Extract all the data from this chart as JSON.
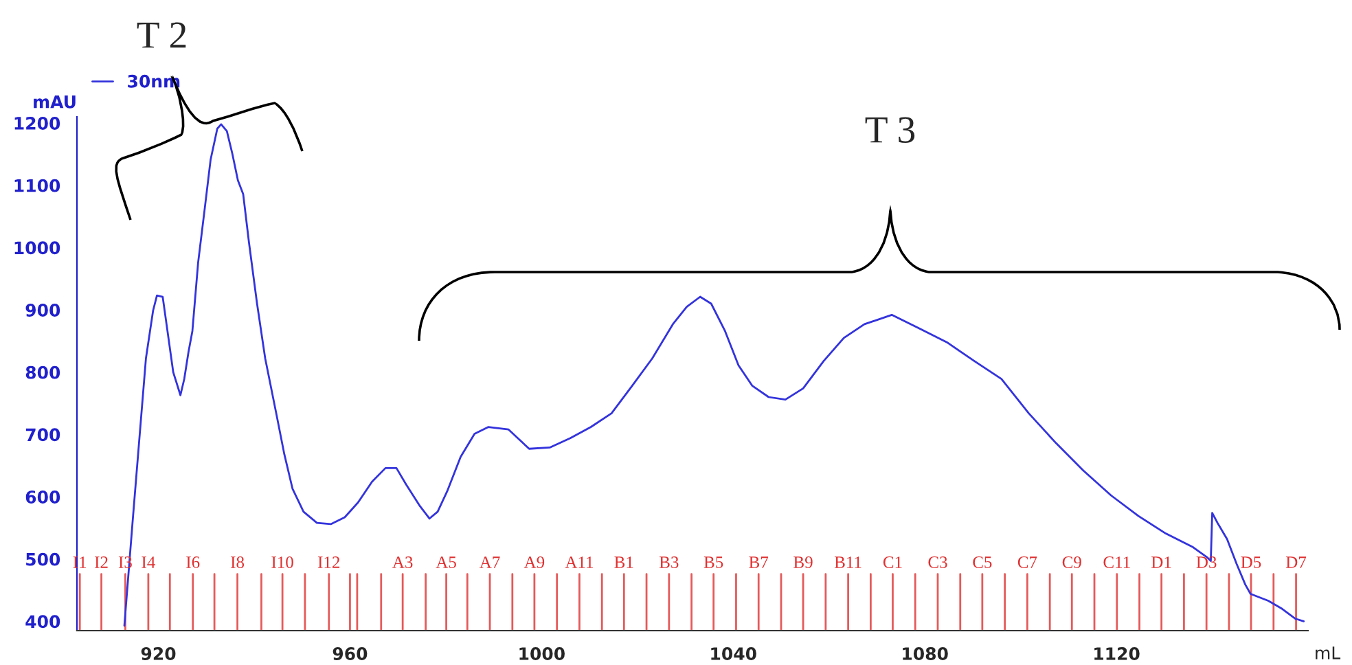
{
  "chart_data": {
    "type": "line",
    "xlabel": "mL",
    "ylabel": "mAU",
    "series": [
      {
        "name": "30nm",
        "color": "#3333dd",
        "x": [
          912.9,
          914.6,
          916.0,
          917.4,
          918.9,
          919.7,
          920.9,
          921.7,
          923.1,
          924.6,
          925.4,
          926.3,
          927.1,
          928.3,
          929.7,
          930.9,
          932.3,
          933.1,
          934.3,
          935.4,
          936.6,
          937.7,
          938.9,
          940.6,
          942.3,
          944.6,
          946.3,
          948.0,
          950.3,
          953.1,
          956.0,
          958.9,
          961.7,
          964.6,
          967.4,
          969.7,
          971.7,
          974.6,
          976.6,
          978.3,
          980.3,
          983.1,
          986.0,
          988.9,
          993.1,
          997.4,
          1001.7,
          1006.0,
          1010.3,
          1014.6,
          1018.9,
          1023.1,
          1027.4,
          1030.3,
          1033.1,
          1035.4,
          1038.3,
          1041.1,
          1044.0,
          1047.4,
          1050.9,
          1054.6,
          1058.9,
          1063.1,
          1067.4,
          1073.1,
          1078.9,
          1084.6,
          1090.3,
          1096.0,
          1101.7,
          1107.4,
          1113.1,
          1118.9,
          1124.6,
          1130.3,
          1136.0,
          1138.9,
          1139.7,
          1140.0,
          1141.1,
          1143.1,
          1145.1,
          1146.9,
          1148.0,
          1151.7,
          1154.6,
          1157.4,
          1159.1
        ],
        "values": [
          393,
          558,
          690,
          822,
          899,
          923,
          921,
          877,
          800,
          763,
          789,
          833,
          866,
          976,
          1064,
          1141,
          1191,
          1198,
          1187,
          1152,
          1108,
          1086,
          1009,
          910,
          822,
          734,
          668,
          613,
          576,
          558,
          556,
          567,
          591,
          624,
          646,
          646,
          620,
          585,
          565,
          576,
          609,
          664,
          701,
          712,
          708,
          677,
          679,
          694,
          712,
          734,
          778,
          822,
          877,
          905,
          921,
          910,
          866,
          811,
          778,
          760,
          756,
          774,
          818,
          855,
          877,
          892,
          870,
          848,
          818,
          789,
          734,
          686,
          642,
          602,
          569,
          541,
          519,
          503,
          497,
          574,
          558,
          532,
          492,
          459,
          444,
          433,
          420,
          404,
          400
        ]
      }
    ],
    "xlim": [
      903,
      1160
    ],
    "xticks": [
      920,
      960,
      1000,
      1040,
      1080,
      1120
    ],
    "ylim": [
      385,
      1210
    ],
    "yticks": [
      400,
      500,
      600,
      700,
      800,
      900,
      1000,
      1100,
      1200
    ],
    "grid": false,
    "legend": "top",
    "marker": "none",
    "line_style": "solid",
    "ref_lines": [
      {
        "axis": "x",
        "value": 903.6,
        "label": "I1",
        "color": "#e03030"
      },
      {
        "axis": "x",
        "value": 908.1,
        "label": "I2",
        "color": "#e03030"
      },
      {
        "axis": "x",
        "value": 913.1,
        "label": "I3",
        "color": "#e03030"
      },
      {
        "axis": "x",
        "value": 917.9,
        "label": "I4",
        "color": "#e03030"
      },
      {
        "axis": "x",
        "value": 922.4,
        "label": null,
        "color": "#e03030"
      },
      {
        "axis": "x",
        "value": 927.2,
        "label": "I6",
        "color": "#e03030"
      },
      {
        "axis": "x",
        "value": 931.7,
        "label": null,
        "color": "#e03030"
      },
      {
        "axis": "x",
        "value": 936.5,
        "label": "I8",
        "color": "#e03030"
      },
      {
        "axis": "x",
        "value": 941.5,
        "label": null,
        "color": "#e03030"
      },
      {
        "axis": "x",
        "value": 945.9,
        "label": "I10",
        "color": "#e03030"
      },
      {
        "axis": "x",
        "value": 950.6,
        "label": null,
        "color": "#e03030"
      },
      {
        "axis": "x",
        "value": 955.6,
        "label": "I12",
        "color": "#e03030"
      },
      {
        "axis": "x",
        "value": 960.0,
        "label": null,
        "color": "#e03030"
      },
      {
        "axis": "x",
        "value": 961.5,
        "label": null,
        "color": "#e03030"
      },
      {
        "axis": "x",
        "value": 966.5,
        "label": null,
        "color": "#e03030"
      },
      {
        "axis": "x",
        "value": 971.0,
        "label": "A3",
        "color": "#e03030"
      },
      {
        "axis": "x",
        "value": 975.8,
        "label": null,
        "color": "#e03030"
      },
      {
        "axis": "x",
        "value": 980.1,
        "label": "A5",
        "color": "#e03030"
      },
      {
        "axis": "x",
        "value": 984.5,
        "label": null,
        "color": "#e03030"
      },
      {
        "axis": "x",
        "value": 989.2,
        "label": "A7",
        "color": "#e03030"
      },
      {
        "axis": "x",
        "value": 993.9,
        "label": null,
        "color": "#e03030"
      },
      {
        "axis": "x",
        "value": 998.5,
        "label": "A9",
        "color": "#e03030"
      },
      {
        "axis": "x",
        "value": 1003.2,
        "label": null,
        "color": "#e03030"
      },
      {
        "axis": "x",
        "value": 1007.9,
        "label": "A11",
        "color": "#e03030"
      },
      {
        "axis": "x",
        "value": 1012.6,
        "label": null,
        "color": "#e03030"
      },
      {
        "axis": "x",
        "value": 1017.2,
        "label": "B1",
        "color": "#e03030"
      },
      {
        "axis": "x",
        "value": 1021.9,
        "label": null,
        "color": "#e03030"
      },
      {
        "axis": "x",
        "value": 1026.6,
        "label": "B3",
        "color": "#e03030"
      },
      {
        "axis": "x",
        "value": 1031.3,
        "label": null,
        "color": "#e03030"
      },
      {
        "axis": "x",
        "value": 1035.9,
        "label": "B5",
        "color": "#e03030"
      },
      {
        "axis": "x",
        "value": 1040.6,
        "label": null,
        "color": "#e03030"
      },
      {
        "axis": "x",
        "value": 1045.3,
        "label": "B7",
        "color": "#e03030"
      },
      {
        "axis": "x",
        "value": 1050.0,
        "label": null,
        "color": "#e03030"
      },
      {
        "axis": "x",
        "value": 1054.6,
        "label": "B9",
        "color": "#e03030"
      },
      {
        "axis": "x",
        "value": 1059.3,
        "label": null,
        "color": "#e03030"
      },
      {
        "axis": "x",
        "value": 1064.0,
        "label": "B11",
        "color": "#e03030"
      },
      {
        "axis": "x",
        "value": 1068.7,
        "label": null,
        "color": "#e03030"
      },
      {
        "axis": "x",
        "value": 1073.3,
        "label": "C1",
        "color": "#e03030"
      },
      {
        "axis": "x",
        "value": 1078.0,
        "label": null,
        "color": "#e03030"
      },
      {
        "axis": "x",
        "value": 1082.7,
        "label": "C3",
        "color": "#e03030"
      },
      {
        "axis": "x",
        "value": 1087.4,
        "label": null,
        "color": "#e03030"
      },
      {
        "axis": "x",
        "value": 1092.0,
        "label": "C5",
        "color": "#e03030"
      },
      {
        "axis": "x",
        "value": 1096.7,
        "label": null,
        "color": "#e03030"
      },
      {
        "axis": "x",
        "value": 1101.4,
        "label": "C7",
        "color": "#e03030"
      },
      {
        "axis": "x",
        "value": 1106.1,
        "label": null,
        "color": "#e03030"
      },
      {
        "axis": "x",
        "value": 1110.7,
        "label": "C9",
        "color": "#e03030"
      },
      {
        "axis": "x",
        "value": 1115.4,
        "label": null,
        "color": "#e03030"
      },
      {
        "axis": "x",
        "value": 1120.1,
        "label": "C11",
        "color": "#e03030"
      },
      {
        "axis": "x",
        "value": 1124.8,
        "label": null,
        "color": "#e03030"
      },
      {
        "axis": "x",
        "value": 1129.4,
        "label": "D1",
        "color": "#e03030"
      },
      {
        "axis": "x",
        "value": 1134.1,
        "label": null,
        "color": "#e03030"
      },
      {
        "axis": "x",
        "value": 1138.8,
        "label": "D3",
        "color": "#e03030"
      },
      {
        "axis": "x",
        "value": 1143.5,
        "label": null,
        "color": "#e03030"
      },
      {
        "axis": "x",
        "value": 1148.1,
        "label": "D5",
        "color": "#e03030"
      },
      {
        "axis": "x",
        "value": 1152.8,
        "label": null,
        "color": "#e03030"
      },
      {
        "axis": "x",
        "value": 1157.5,
        "label": "D7",
        "color": "#e03030"
      }
    ],
    "annotations": [
      "T 2",
      "T 3"
    ]
  }
}
